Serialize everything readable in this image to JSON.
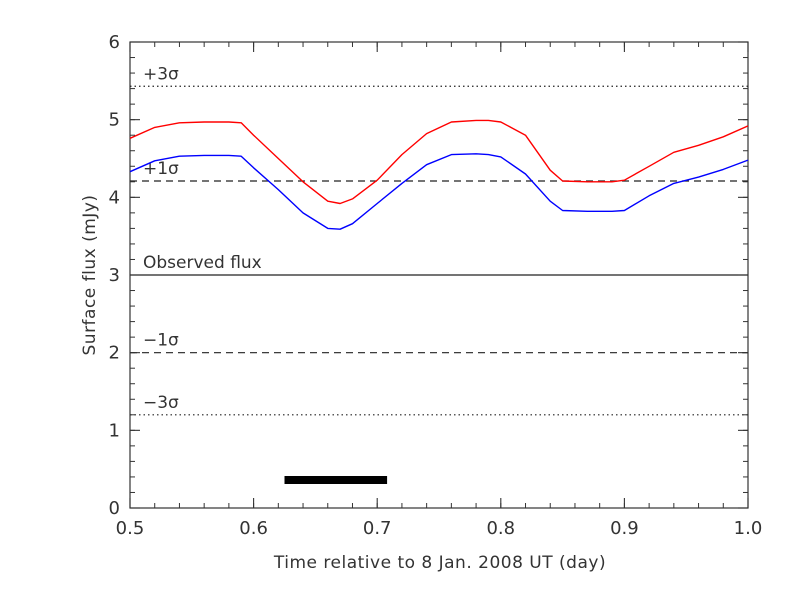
{
  "chart_data": {
    "type": "line",
    "xlabel": "Time relative to 8 Jan. 2008 UT (day)",
    "ylabel": "Surface flux (mJy)",
    "xlim": [
      0.5,
      1.0
    ],
    "ylim": [
      0,
      6
    ],
    "x_ticks": [
      "0.5",
      "0.6",
      "0.7",
      "0.8",
      "0.9",
      "1.0"
    ],
    "y_ticks": [
      "0",
      "1",
      "2",
      "3",
      "4",
      "5",
      "6"
    ],
    "grid": false,
    "series": [
      {
        "color": "#ff0000",
        "x": [
          0.5,
          0.52,
          0.54,
          0.56,
          0.58,
          0.59,
          0.6,
          0.62,
          0.64,
          0.66,
          0.67,
          0.68,
          0.7,
          0.72,
          0.74,
          0.76,
          0.78,
          0.79,
          0.8,
          0.82,
          0.84,
          0.85,
          0.87,
          0.89,
          0.9,
          0.92,
          0.94,
          0.96,
          0.98,
          1.0
        ],
        "y": [
          4.76,
          4.9,
          4.96,
          4.97,
          4.97,
          4.96,
          4.8,
          4.5,
          4.2,
          3.95,
          3.92,
          3.98,
          4.22,
          4.55,
          4.82,
          4.97,
          4.99,
          4.99,
          4.97,
          4.8,
          4.35,
          4.21,
          4.2,
          4.2,
          4.22,
          4.4,
          4.58,
          4.67,
          4.78,
          4.92
        ]
      },
      {
        "color": "#0000ff",
        "x": [
          0.5,
          0.52,
          0.54,
          0.56,
          0.58,
          0.59,
          0.6,
          0.62,
          0.64,
          0.66,
          0.67,
          0.68,
          0.7,
          0.72,
          0.74,
          0.76,
          0.78,
          0.79,
          0.8,
          0.82,
          0.84,
          0.85,
          0.87,
          0.89,
          0.9,
          0.92,
          0.94,
          0.96,
          0.98,
          1.0
        ],
        "y": [
          4.33,
          4.47,
          4.53,
          4.54,
          4.54,
          4.53,
          4.38,
          4.1,
          3.8,
          3.6,
          3.59,
          3.66,
          3.92,
          4.18,
          4.42,
          4.55,
          4.56,
          4.55,
          4.52,
          4.3,
          3.95,
          3.83,
          3.82,
          3.82,
          3.83,
          4.02,
          4.18,
          4.26,
          4.36,
          4.48
        ]
      }
    ],
    "reference_lines": [
      {
        "y": 5.43,
        "style": "dotted",
        "label": "+3σ"
      },
      {
        "y": 4.21,
        "style": "dashed",
        "label": "+1σ"
      },
      {
        "y": 3.0,
        "style": "solid",
        "label": "Observed flux"
      },
      {
        "y": 2.0,
        "style": "dashed",
        "label": "−1σ"
      },
      {
        "y": 1.2,
        "style": "dotted",
        "label": "−3σ"
      }
    ],
    "bar_segment": {
      "x0": 0.625,
      "x1": 0.708,
      "y": 0.36,
      "color": "#000000"
    }
  }
}
